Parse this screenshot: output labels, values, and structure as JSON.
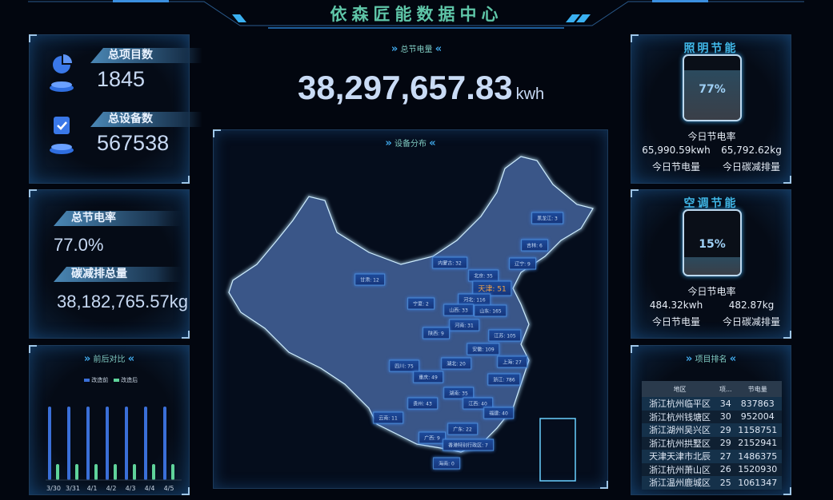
{
  "header": {
    "title": "依森匠能数据中心"
  },
  "summary": {
    "projects_label": "总项目数",
    "projects_value": "1845",
    "devices_label": "总设备数",
    "devices_value": "567538"
  },
  "rates": {
    "rate_label": "总节电率",
    "rate_value": "77.0%",
    "carbon_label": "碳减排总量",
    "carbon_value": "38,182,765.57kg"
  },
  "compare": {
    "title": "前后对比",
    "legend": [
      "改造前",
      "改造后"
    ]
  },
  "center": {
    "total_label": "总节电量",
    "total_value": "38,297,657.83",
    "total_unit": "kwh",
    "map_title": "设备分布"
  },
  "provinces": [
    {
      "name": "黑龙江",
      "text": "黑龙江: 3"
    },
    {
      "name": "吉林",
      "text": "吉林: 6"
    },
    {
      "name": "辽宁",
      "text": "辽宁: 9"
    },
    {
      "name": "内蒙古",
      "text": "内蒙古: 32"
    },
    {
      "name": "北京",
      "text": "北京: 35"
    },
    {
      "name": "天津",
      "text": "天津: 51"
    },
    {
      "name": "甘肃",
      "text": "甘肃: 12"
    },
    {
      "name": "宁夏",
      "text": "宁夏: 2"
    },
    {
      "name": "河北",
      "text": "河北: 116"
    },
    {
      "name": "山西",
      "text": "山西: 33"
    },
    {
      "name": "山东",
      "text": "山东: 165"
    },
    {
      "name": "河南",
      "text": "河南: 31"
    },
    {
      "name": "陕西",
      "text": "陕西: 9"
    },
    {
      "name": "江苏",
      "text": "江苏: 105"
    },
    {
      "name": "安徽",
      "text": "安徽: 109"
    },
    {
      "name": "上海",
      "text": "上海: 27"
    },
    {
      "name": "湖北",
      "text": "湖北: 20"
    },
    {
      "name": "四川",
      "text": "四川: 75"
    },
    {
      "name": "重庆",
      "text": "重庆: 49"
    },
    {
      "name": "浙江",
      "text": "浙江: 786"
    },
    {
      "name": "湖南",
      "text": "湖南: 35"
    },
    {
      "name": "贵州",
      "text": "贵州: 43"
    },
    {
      "name": "江西",
      "text": "江西: 40"
    },
    {
      "name": "福建",
      "text": "福建: 40"
    },
    {
      "name": "云南",
      "text": "云南: 11"
    },
    {
      "name": "广东",
      "text": "广东: 22"
    },
    {
      "name": "广西",
      "text": "广西: 9"
    },
    {
      "name": "香港",
      "text": "香港特别行政区: 7"
    },
    {
      "name": "海南",
      "text": "海南: 0"
    }
  ],
  "lighting": {
    "title": "照明节能",
    "rate": "77%",
    "rate_fraction": 0.77,
    "rate_label": "今日节电率",
    "kwh": "65,990.59kwh",
    "kwh_label": "今日节电量",
    "kg": "65,792.62kg",
    "kg_label": "今日碳减排量"
  },
  "ac": {
    "title": "空调节能",
    "rate": "15%",
    "rate_fraction": 0.15,
    "rate_label": "今日节电率",
    "kwh": "484.32kwh",
    "kwh_label": "今日节电量",
    "kg": "482.87kg",
    "kg_label": "今日碳减排量"
  },
  "ranking": {
    "title": "项目排名",
    "columns": [
      "地区",
      "项...",
      "节电量"
    ],
    "rows": [
      [
        "浙江杭州临平区",
        "34",
        "837863"
      ],
      [
        "浙江杭州钱塘区",
        "30",
        "952004"
      ],
      [
        "浙江湖州吴兴区",
        "29",
        "1158751"
      ],
      [
        "浙江杭州拱墅区",
        "29",
        "2152941"
      ],
      [
        "天津天津市北辰",
        "27",
        "1486375"
      ],
      [
        "浙江杭州萧山区",
        "26",
        "1520930"
      ],
      [
        "浙江温州鹿城区",
        "25",
        "1061347"
      ]
    ]
  },
  "chart_data": {
    "type": "bar",
    "categories": [
      "3/30",
      "3/31",
      "4/1",
      "4/2",
      "4/3",
      "4/4",
      "4/5"
    ],
    "series": [
      {
        "name": "改造前",
        "values": [
          92,
          92,
          92,
          92,
          92,
          92,
          92
        ]
      },
      {
        "name": "改造后",
        "values": [
          20,
          20,
          20,
          20,
          20,
          20,
          20
        ]
      }
    ],
    "colors": {
      "改造前": "#3a6fd8",
      "改造后": "#5fd39a"
    },
    "legend": "top"
  }
}
